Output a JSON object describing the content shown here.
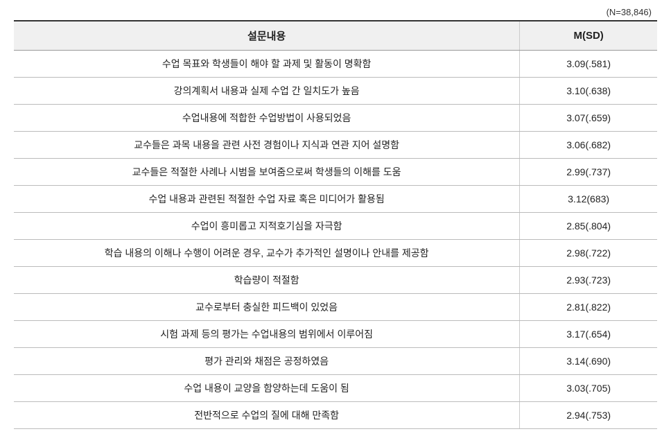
{
  "meta": {
    "n_label": "(N=38,846)"
  },
  "table": {
    "headers": {
      "question": "설문내용",
      "value": "M(SD)"
    },
    "rows": [
      {
        "question": "수업 목표와 학생들이 해야 할 과제 및 활동이 명확함",
        "value": "3.09(.581)"
      },
      {
        "question": "강의계획서 내용과 실제 수업 간 일치도가 높음",
        "value": "3.10(.638)"
      },
      {
        "question": "수업내용에 적합한 수업방법이 사용되었음",
        "value": "3.07(.659)"
      },
      {
        "question": "교수들은 과목 내용을 관련 사전 경험이나 지식과 연관 지어 설명함",
        "value": "3.06(.682)"
      },
      {
        "question": "교수들은 적절한 사례나 시범을 보여줌으로써 학생들의 이해를 도움",
        "value": "2.99(.737)"
      },
      {
        "question": "수업 내용과 관련된 적절한 수업 자료 혹은 미디어가 활용됨",
        "value": "3.12(683)"
      },
      {
        "question": "수업이 흥미롭고 지적호기심을 자극함",
        "value": "2.85(.804)"
      },
      {
        "question": "학습 내용의 이해나 수행이 어려운 경우, 교수가 추가적인 설명이나 안내를 제공함",
        "value": "2.98(.722)"
      },
      {
        "question": "학습량이 적절함",
        "value": "2.93(.723)"
      },
      {
        "question": "교수로부터 충실한 피드백이 있었음",
        "value": "2.81(.822)"
      },
      {
        "question": "시험 과제 등의 평가는 수업내용의 범위에서 이루어짐",
        "value": "3.17(.654)"
      },
      {
        "question": "평가 관리와 채점은 공정하였음",
        "value": "3.14(.690)"
      },
      {
        "question": "수업 내용이 교양을 함양하는데 도움이 됨",
        "value": "3.03(.705)"
      },
      {
        "question": "전반적으로 수업의 질에 대해 만족함",
        "value": "2.94(.753)"
      }
    ]
  },
  "styling": {
    "background_color": "#ffffff",
    "header_bg": "#f0f0f0",
    "border_top_color": "#333333",
    "border_color": "#bbbbbb",
    "text_color": "#222222",
    "font_family": "Malgun Gothic",
    "header_fontsize": 15,
    "body_fontsize": 14,
    "n_label_fontsize": 13,
    "col_question_width": 740,
    "col_value_width": 200
  }
}
